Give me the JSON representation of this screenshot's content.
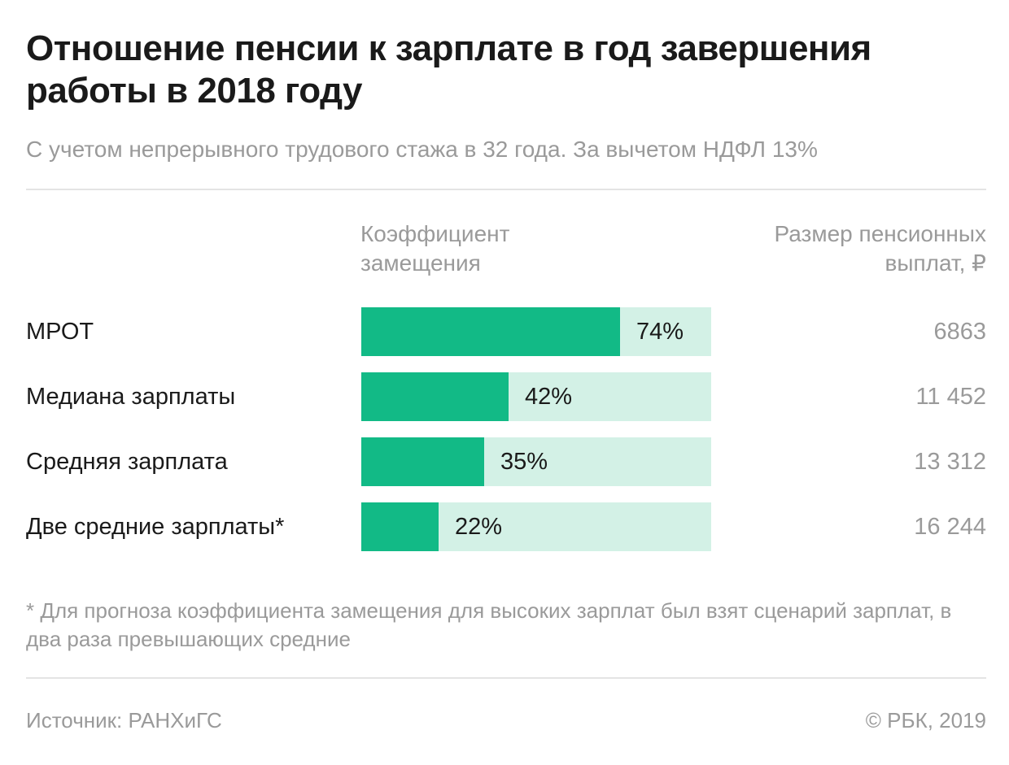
{
  "header": {
    "title": "Отношение пенсии к зарплате в год завершения работы в 2018 году",
    "subtitle": "С учетом непрерывного трудового стажа в 32 года. За вычетом НДФЛ 13%"
  },
  "columns": {
    "coefficient": "Коэффициент замещения",
    "payments": "Размер пенсионных выплат, ₽"
  },
  "chart_data": {
    "type": "bar",
    "orientation": "horizontal",
    "categories": [
      "МРОТ",
      "Медиана зарплаты",
      "Средняя зарплата",
      "Две средние зарплаты*"
    ],
    "series": [
      {
        "values": [
          74,
          42,
          35,
          22
        ],
        "labels": [
          "74%",
          "42%",
          "35%",
          "22%"
        ]
      }
    ],
    "payments": [
      "6863",
      "11 452",
      "13 312",
      "16 244"
    ],
    "xlim": [
      0,
      100
    ],
    "grid": false,
    "colors": {
      "fill": "#12ba86",
      "track": "#d3f1e6"
    }
  },
  "footer": {
    "footnote": "* Для прогноза коэффициента замещения для высоких зарплат был взят сценарий зарплат, в два раза превышающих средние",
    "source": "Источник: РАНХиГС",
    "copyright": "© РБК, 2019"
  }
}
